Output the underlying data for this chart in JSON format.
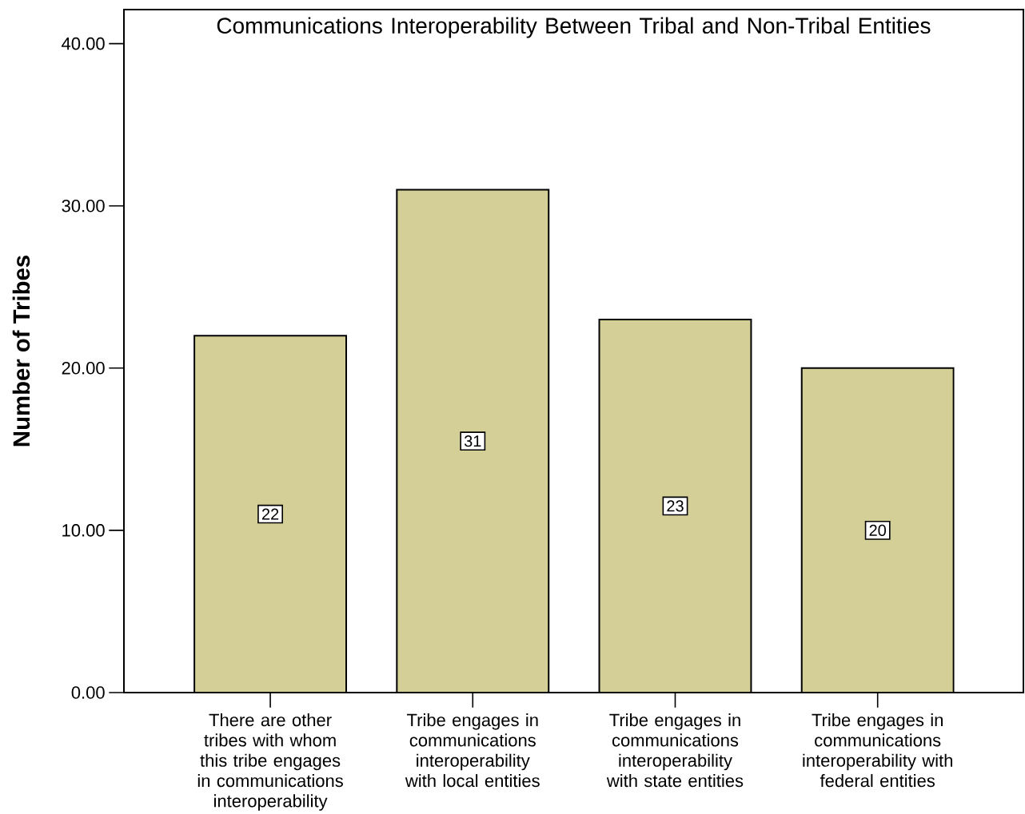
{
  "chart_data": {
    "type": "bar",
    "title": "Communications Interoperability Between Tribal and Non-Tribal Entities",
    "ylabel": "Number of Tribes",
    "categories": [
      "There are other tribes with whom this tribe engages in communications interoperability",
      "Tribe engages in communications interoperability with local entities",
      "Tribe engages in communications interoperability with state entities",
      "Tribe engages in communications interoperability with federal entities"
    ],
    "values": [
      22,
      31,
      23,
      20
    ],
    "value_labels": [
      "22",
      "31",
      "23",
      "20"
    ],
    "color": "#d3cf96",
    "ylim": [
      0,
      42.1
    ],
    "yticks": [
      {
        "value": 0,
        "label": "0.00"
      },
      {
        "value": 10,
        "label": "10.00"
      },
      {
        "value": 20,
        "label": "20.00"
      },
      {
        "value": 30,
        "label": "30.00"
      },
      {
        "value": 40,
        "label": "40.00"
      }
    ],
    "grid": false
  }
}
